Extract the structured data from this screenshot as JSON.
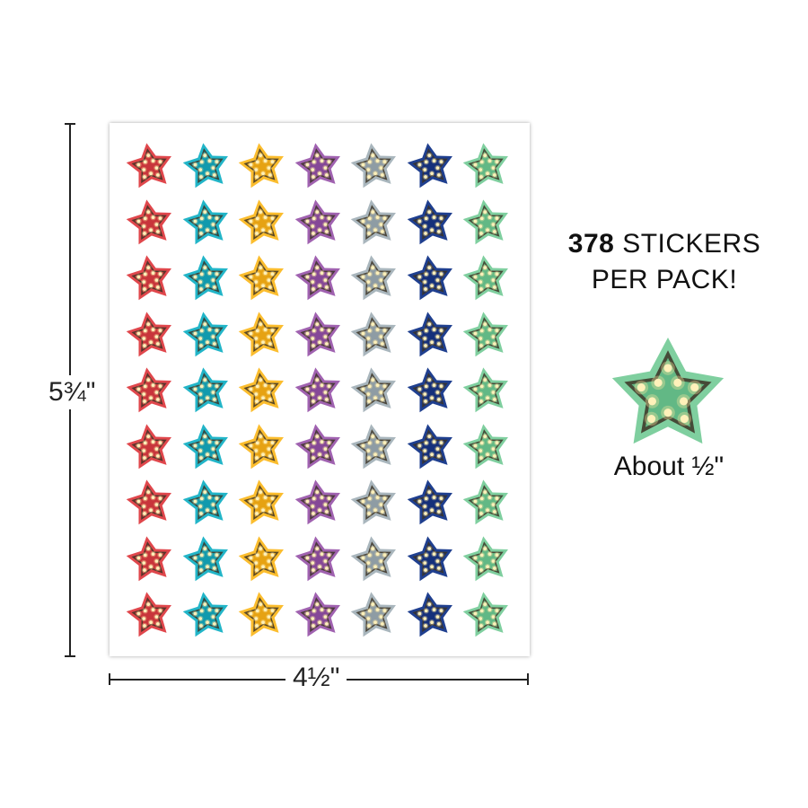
{
  "dimensions": {
    "height_label": "5¾\"",
    "width_label": "4½\""
  },
  "sheet": {
    "rows": 9,
    "columns": 7,
    "star_colors": [
      {
        "name": "red",
        "fill": "#e0474c",
        "inner": "#c8353b"
      },
      {
        "name": "teal",
        "fill": "#22b5c8",
        "inner": "#119aad"
      },
      {
        "name": "yellow",
        "fill": "#fbbd2e",
        "inner": "#e6a212"
      },
      {
        "name": "purple",
        "fill": "#a062b0",
        "inner": "#854897"
      },
      {
        "name": "gray",
        "fill": "#a9b6bd",
        "inner": "#8e9ca4"
      },
      {
        "name": "navy",
        "fill": "#1f3f8f",
        "inner": "#15307a"
      },
      {
        "name": "green",
        "fill": "#7fcf9f",
        "inner": "#62b885"
      }
    ]
  },
  "headline": {
    "count": "378",
    "line1_rest": "STICKERS",
    "line2": "PER PACK!"
  },
  "sample": {
    "color": "#7fcf9f",
    "inner": "#62b885",
    "caption": "About ½\""
  },
  "icon_names": [
    "marquee-star-icon"
  ]
}
